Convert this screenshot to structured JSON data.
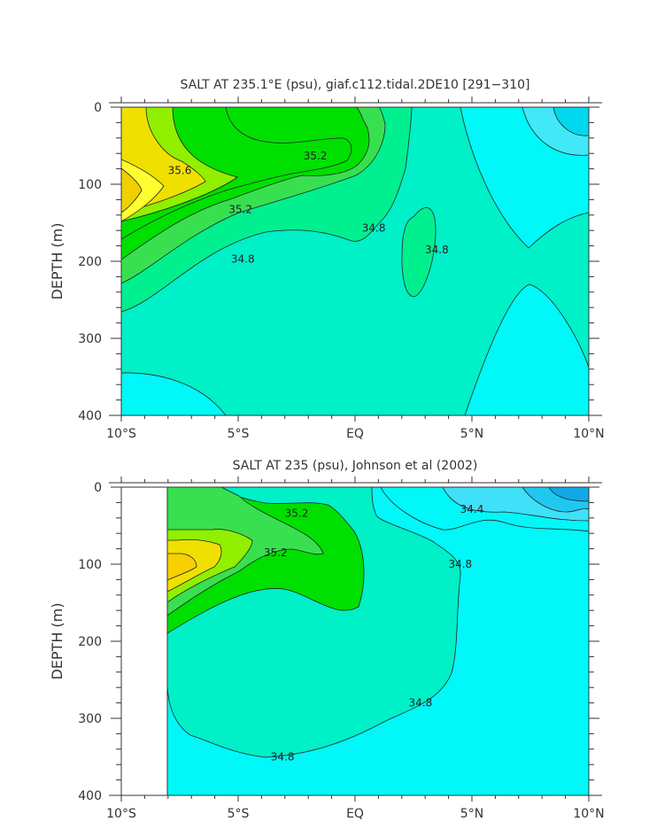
{
  "chart_data": [
    {
      "type": "heatmap",
      "title": "SALT AT 235.1°E (psu), giaf.c112.tidal.2DE10 [291−310]",
      "ylabel": "DEPTH (m)",
      "xlim": [
        -10,
        10
      ],
      "ylim": [
        400,
        0
      ],
      "xticks": [
        {
          "v": -10,
          "label": "10°S"
        },
        {
          "v": -5,
          "label": "5°S"
        },
        {
          "v": 0,
          "label": "EQ"
        },
        {
          "v": 5,
          "label": "5°N"
        },
        {
          "v": 10,
          "label": "10°N"
        }
      ],
      "yticks": [
        {
          "v": 0,
          "label": "0"
        },
        {
          "v": 100,
          "label": "100"
        },
        {
          "v": 200,
          "label": "200"
        },
        {
          "v": 300,
          "label": "300"
        },
        {
          "v": 400,
          "label": "400"
        }
      ],
      "data_start_lat": -10,
      "contour_labels": [
        {
          "lat": -7.5,
          "depth": 82,
          "value": "35.6"
        },
        {
          "lat": -4.9,
          "depth": 133,
          "value": "35.2"
        },
        {
          "lat": -1.7,
          "depth": 63,
          "value": "35.2"
        },
        {
          "lat": -4.8,
          "depth": 197,
          "value": "34.8"
        },
        {
          "lat": 0.8,
          "depth": 157,
          "value": "34.8"
        },
        {
          "lat": 3.5,
          "depth": 185,
          "value": "34.8"
        }
      ],
      "colors": [
        "#00e8f0",
        "#00f8f8",
        "#00f8c8",
        "#00f090",
        "#38e050",
        "#00e000",
        "#90f000",
        "#f0e000",
        "#ffff30",
        "#f0d000"
      ]
    },
    {
      "type": "heatmap",
      "title": "SALT AT 235 (psu), Johnson et al (2002)",
      "ylabel": "DEPTH (m)",
      "xlim": [
        -10,
        10
      ],
      "ylim": [
        400,
        0
      ],
      "xticks": [
        {
          "v": -10,
          "label": "10°S"
        },
        {
          "v": -5,
          "label": "5°S"
        },
        {
          "v": 0,
          "label": "EQ"
        },
        {
          "v": 5,
          "label": "5°N"
        },
        {
          "v": 10,
          "label": "10°N"
        }
      ],
      "yticks": [
        {
          "v": 0,
          "label": "0"
        },
        {
          "v": 100,
          "label": "100"
        },
        {
          "v": 200,
          "label": "200"
        },
        {
          "v": 300,
          "label": "300"
        },
        {
          "v": 400,
          "label": "400"
        }
      ],
      "data_start_lat": -8,
      "contour_labels": [
        {
          "lat": -2.5,
          "depth": 34,
          "value": "35.2"
        },
        {
          "lat": -3.4,
          "depth": 85,
          "value": "35.2"
        },
        {
          "lat": 5.0,
          "depth": 29,
          "value": "34.4"
        },
        {
          "lat": 4.5,
          "depth": 100,
          "value": "34.8"
        },
        {
          "lat": 2.8,
          "depth": 280,
          "value": "34.8"
        },
        {
          "lat": -3.1,
          "depth": 350,
          "value": "34.8"
        }
      ],
      "colors": [
        "#00f8f8",
        "#00f0c8",
        "#00e000",
        "#38e050",
        "#f0e000"
      ]
    }
  ]
}
